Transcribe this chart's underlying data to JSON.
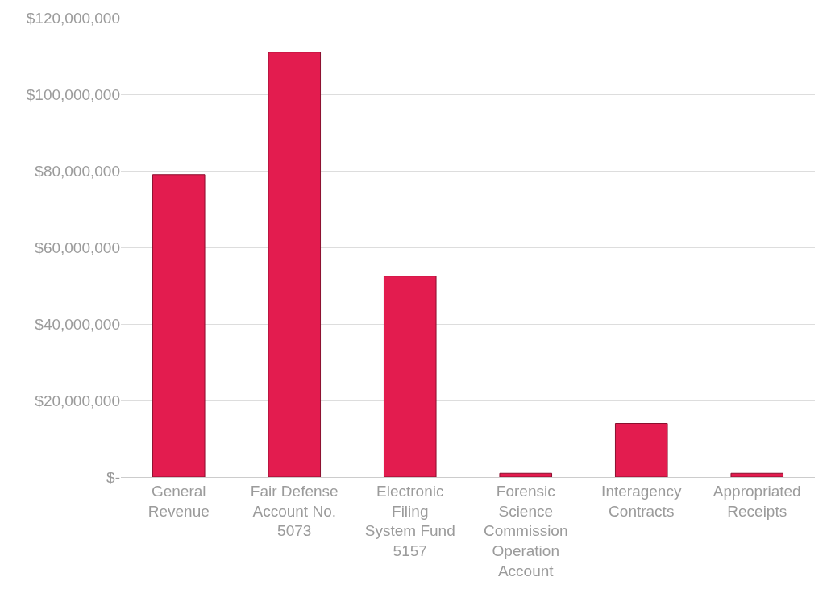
{
  "chart_data": {
    "type": "bar",
    "categories": [
      "General Revenue",
      "Fair Defense Account No. 5073",
      "Electronic Filing System Fund 5157",
      "Forensic Science Commission Operation Account",
      "Interagency Contracts",
      "Appropriated Receipts"
    ],
    "values": [
      79000000,
      111000000,
      52500000,
      1000000,
      14000000,
      1000000
    ],
    "color": "#e31c4f",
    "ylim": [
      0,
      120000000
    ],
    "yticks": [
      {
        "value": 0,
        "label": "$-"
      },
      {
        "value": 20000000,
        "label": "$20,000,000"
      },
      {
        "value": 40000000,
        "label": "$40,000,000"
      },
      {
        "value": 60000000,
        "label": "$60,000,000"
      },
      {
        "value": 80000000,
        "label": "$80,000,000"
      },
      {
        "value": 100000000,
        "label": "$100,000,000"
      },
      {
        "value": 120000000,
        "label": "$120,000,000"
      }
    ],
    "grid": "y"
  }
}
